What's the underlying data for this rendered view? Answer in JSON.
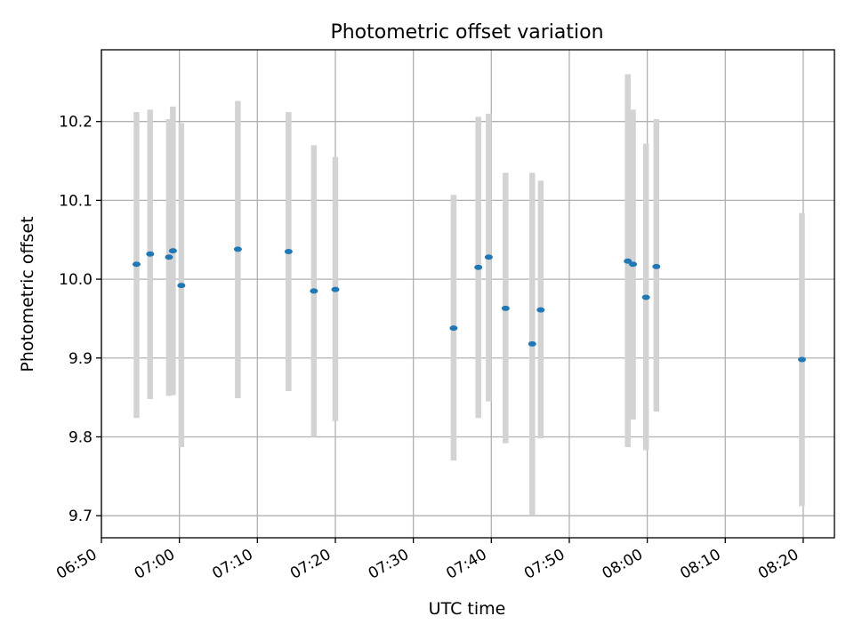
{
  "chart_data": {
    "type": "scatter",
    "title": "Photometric offset variation",
    "xlabel": "UTC time",
    "ylabel": "Photometric offset",
    "x_tick_labels": [
      "06:50",
      "07:00",
      "07:10",
      "07:20",
      "07:30",
      "07:40",
      "07:50",
      "08:00",
      "08:10",
      "08:20"
    ],
    "x_ticks_minutes": [
      0,
      10,
      20,
      30,
      40,
      50,
      60,
      70,
      80,
      90
    ],
    "y_ticks": [
      9.7,
      9.8,
      9.9,
      10.0,
      10.1,
      10.2
    ],
    "y_tick_labels": [
      "9.7",
      "9.8",
      "9.9",
      "10.0",
      "10.1",
      "10.2"
    ],
    "xlim": [
      "06:50",
      "08:24"
    ],
    "ylim": [
      9.672,
      10.291
    ],
    "grid": true,
    "colors": {
      "point": "#1f77b4",
      "error_bar": "#d3d3d3",
      "grid": "#b0b0b0"
    },
    "points": [
      {
        "x": "06:54:30",
        "y": 10.019,
        "ylow": 9.824,
        "yhigh": 10.212
      },
      {
        "x": "06:56:15",
        "y": 10.032,
        "ylow": 9.848,
        "yhigh": 10.215
      },
      {
        "x": "06:58:40",
        "y": 10.028,
        "ylow": 9.852,
        "yhigh": 10.203
      },
      {
        "x": "06:59:10",
        "y": 10.036,
        "ylow": 9.853,
        "yhigh": 10.219
      },
      {
        "x": "07:00:15",
        "y": 9.992,
        "ylow": 9.787,
        "yhigh": 10.198
      },
      {
        "x": "07:07:30",
        "y": 10.038,
        "ylow": 9.849,
        "yhigh": 10.226
      },
      {
        "x": "07:14:00",
        "y": 10.035,
        "ylow": 9.858,
        "yhigh": 10.212
      },
      {
        "x": "07:17:15",
        "y": 9.985,
        "ylow": 9.8,
        "yhigh": 10.17
      },
      {
        "x": "07:20:00",
        "y": 9.987,
        "ylow": 9.82,
        "yhigh": 10.155
      },
      {
        "x": "07:35:10",
        "y": 9.938,
        "ylow": 9.77,
        "yhigh": 10.107
      },
      {
        "x": "07:38:20",
        "y": 10.015,
        "ylow": 9.824,
        "yhigh": 10.206
      },
      {
        "x": "07:39:40",
        "y": 10.028,
        "ylow": 9.845,
        "yhigh": 10.21
      },
      {
        "x": "07:41:50",
        "y": 9.963,
        "ylow": 9.792,
        "yhigh": 10.135
      },
      {
        "x": "07:45:15",
        "y": 9.918,
        "ylow": 9.7,
        "yhigh": 10.135
      },
      {
        "x": "07:46:20",
        "y": 9.961,
        "ylow": 9.798,
        "yhigh": 10.125
      },
      {
        "x": "07:57:30",
        "y": 10.023,
        "ylow": 9.787,
        "yhigh": 10.26
      },
      {
        "x": "07:58:10",
        "y": 10.019,
        "ylow": 9.822,
        "yhigh": 10.215
      },
      {
        "x": "07:59:50",
        "y": 9.977,
        "ylow": 9.783,
        "yhigh": 10.172
      },
      {
        "x": "08:01:10",
        "y": 10.016,
        "ylow": 9.832,
        "yhigh": 10.203
      },
      {
        "x": "08:19:50",
        "y": 9.898,
        "ylow": 9.712,
        "yhigh": 10.084
      }
    ]
  }
}
